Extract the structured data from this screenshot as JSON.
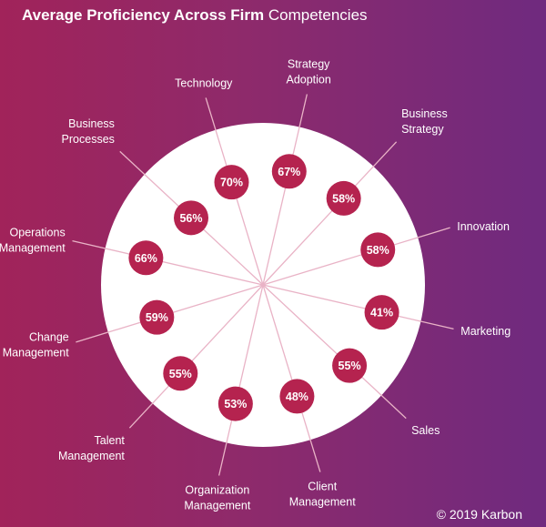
{
  "title": {
    "strong": "Average Proficiency Across Firm",
    "normal": "Competencies"
  },
  "copyright": "© 2019 Karbon",
  "colors": {
    "bubble": "#b5234f",
    "circle": "#ffffff",
    "spoke": "#e9b3c6",
    "label": "#ffffff"
  },
  "chart_data": {
    "type": "radial",
    "title": "Average Proficiency Across Firm Competencies",
    "unit": "%",
    "categories": [
      "Strategy Adoption",
      "Business Strategy",
      "Innovation",
      "Marketing",
      "Sales",
      "Client Management",
      "Organization Management",
      "Talent Management",
      "Change Management",
      "Operations Management",
      "Business Processes",
      "Technology"
    ],
    "category_lines": [
      [
        "Strategy",
        "Adoption"
      ],
      [
        "Business",
        "Strategy"
      ],
      [
        "Innovation"
      ],
      [
        "Marketing"
      ],
      [
        "Sales"
      ],
      [
        "Client",
        "Management"
      ],
      [
        "Organization",
        "Management"
      ],
      [
        "Talent",
        "Management"
      ],
      [
        "Change",
        "Management"
      ],
      [
        "Operations",
        "Management"
      ],
      [
        "Business",
        "Processes"
      ],
      [
        "Technology"
      ]
    ],
    "values": [
      67,
      58,
      58,
      41,
      55,
      48,
      53,
      55,
      59,
      66,
      56,
      70
    ],
    "value_labels": [
      "67%",
      "58%",
      "58%",
      "41%",
      "55%",
      "48%",
      "53%",
      "55%",
      "59%",
      "66%",
      "56%",
      "70%"
    ],
    "grid": false,
    "legend": "none"
  }
}
